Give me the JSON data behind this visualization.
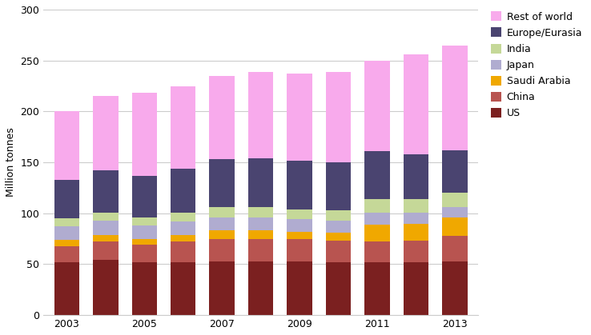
{
  "years": [
    2003,
    2004,
    2005,
    2006,
    2007,
    2008,
    2009,
    2010,
    2011,
    2012,
    2013
  ],
  "US": [
    52,
    54,
    52,
    52,
    53,
    53,
    53,
    52,
    52,
    52,
    53
  ],
  "China": [
    16,
    18,
    17,
    20,
    22,
    22,
    22,
    21,
    20,
    21,
    25
  ],
  "Saudi_Arabia": [
    6,
    7,
    6,
    7,
    8,
    8,
    7,
    8,
    17,
    17,
    18
  ],
  "Japan": [
    13,
    14,
    13,
    13,
    13,
    13,
    12,
    12,
    12,
    11,
    10
  ],
  "India": [
    8,
    8,
    8,
    9,
    10,
    10,
    10,
    10,
    13,
    13,
    14
  ],
  "Europe_Eurasia": [
    38,
    41,
    41,
    43,
    47,
    48,
    48,
    47,
    47,
    44,
    42
  ],
  "Rest_of_world": [
    67,
    73,
    81,
    81,
    82,
    85,
    85,
    89,
    89,
    98,
    103
  ],
  "colors": {
    "US": "#7b2020",
    "China": "#b85450",
    "Saudi_Arabia": "#f0a800",
    "Japan": "#b0acd0",
    "India": "#c5d898",
    "Europe_Eurasia": "#4a4470",
    "Rest_of_world": "#f8aaec"
  },
  "labels": {
    "US": "US",
    "China": "China",
    "Saudi_Arabia": "Saudi Arabia",
    "Japan": "Japan",
    "India": "India",
    "Europe_Eurasia": "Europe/Eurasia",
    "Rest_of_world": "Rest of world"
  },
  "ylabel": "Million tonnes",
  "ylim": [
    0,
    300
  ],
  "yticks": [
    0,
    50,
    100,
    150,
    200,
    250,
    300
  ],
  "figsize": [
    7.38,
    4.19
  ],
  "dpi": 100
}
